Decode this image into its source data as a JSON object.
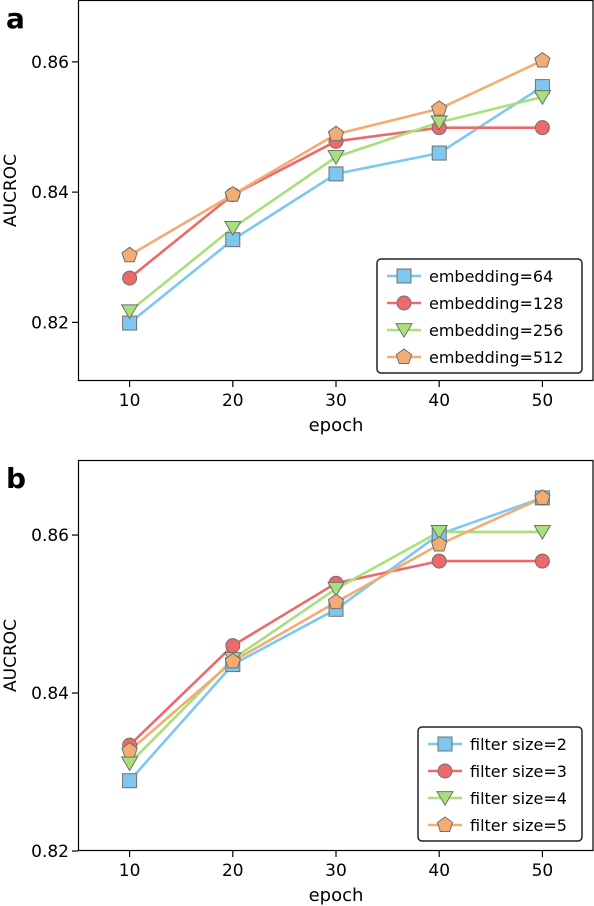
{
  "chart_data": [
    {
      "panel_label": "a",
      "type": "line",
      "xlabel": "epoch",
      "ylabel": "AUCROC",
      "xlim": [
        5,
        55
      ],
      "ylim": [
        0.811,
        0.8695
      ],
      "xticks": [
        10,
        20,
        30,
        40,
        50
      ],
      "xtick_labels": [
        "10",
        "20",
        "30",
        "40",
        "50"
      ],
      "yticks": [
        0.82,
        0.84,
        0.86
      ],
      "ytick_labels": [
        "0.82",
        "0.84",
        "0.86"
      ],
      "grid": false,
      "legend_position": "lower-right",
      "x": [
        10,
        20,
        30,
        40,
        50
      ],
      "series": [
        {
          "name": "embedding=64",
          "color": "#7ec8f0",
          "marker": "square",
          "values": [
            0.8199,
            0.8327,
            0.8428,
            0.846,
            0.8562
          ]
        },
        {
          "name": "embedding=128",
          "color": "#ec6a6a",
          "marker": "circle",
          "values": [
            0.8268,
            0.8396,
            0.8478,
            0.8499,
            0.8499
          ]
        },
        {
          "name": "embedding=256",
          "color": "#a8e07c",
          "marker": "triangle-down",
          "values": [
            0.8217,
            0.8345,
            0.8454,
            0.8507,
            0.8546
          ]
        },
        {
          "name": "embedding=512",
          "color": "#f3ac74",
          "marker": "pentagon",
          "values": [
            0.8303,
            0.8396,
            0.8489,
            0.8528,
            0.8602
          ]
        }
      ]
    },
    {
      "panel_label": "b",
      "type": "line",
      "xlabel": "epoch",
      "ylabel": "AUCROC",
      "xlim": [
        5,
        55
      ],
      "ylim": [
        0.82,
        0.8695
      ],
      "xticks": [
        10,
        20,
        30,
        40,
        50
      ],
      "xtick_labels": [
        "10",
        "20",
        "30",
        "40",
        "50"
      ],
      "yticks": [
        0.82,
        0.84,
        0.86
      ],
      "ytick_labels": [
        "0.82",
        "0.84",
        "0.86"
      ],
      "grid": false,
      "legend_position": "lower-right",
      "x": [
        10,
        20,
        30,
        40,
        50
      ],
      "series": [
        {
          "name": "filter size=2",
          "color": "#7ec8f0",
          "marker": "square",
          "values": [
            0.8289,
            0.8436,
            0.8506,
            0.8601,
            0.8647
          ]
        },
        {
          "name": "filter size=3",
          "color": "#ec6a6a",
          "marker": "circle",
          "values": [
            0.8334,
            0.846,
            0.8539,
            0.8567,
            0.8567
          ]
        },
        {
          "name": "filter size=4",
          "color": "#a8e07c",
          "marker": "triangle-down",
          "values": [
            0.8311,
            0.8443,
            0.8532,
            0.8604,
            0.8604
          ]
        },
        {
          "name": "filter size=5",
          "color": "#f3ac74",
          "marker": "pentagon",
          "values": [
            0.8327,
            0.844,
            0.8515,
            0.8588,
            0.8647
          ]
        }
      ]
    }
  ]
}
